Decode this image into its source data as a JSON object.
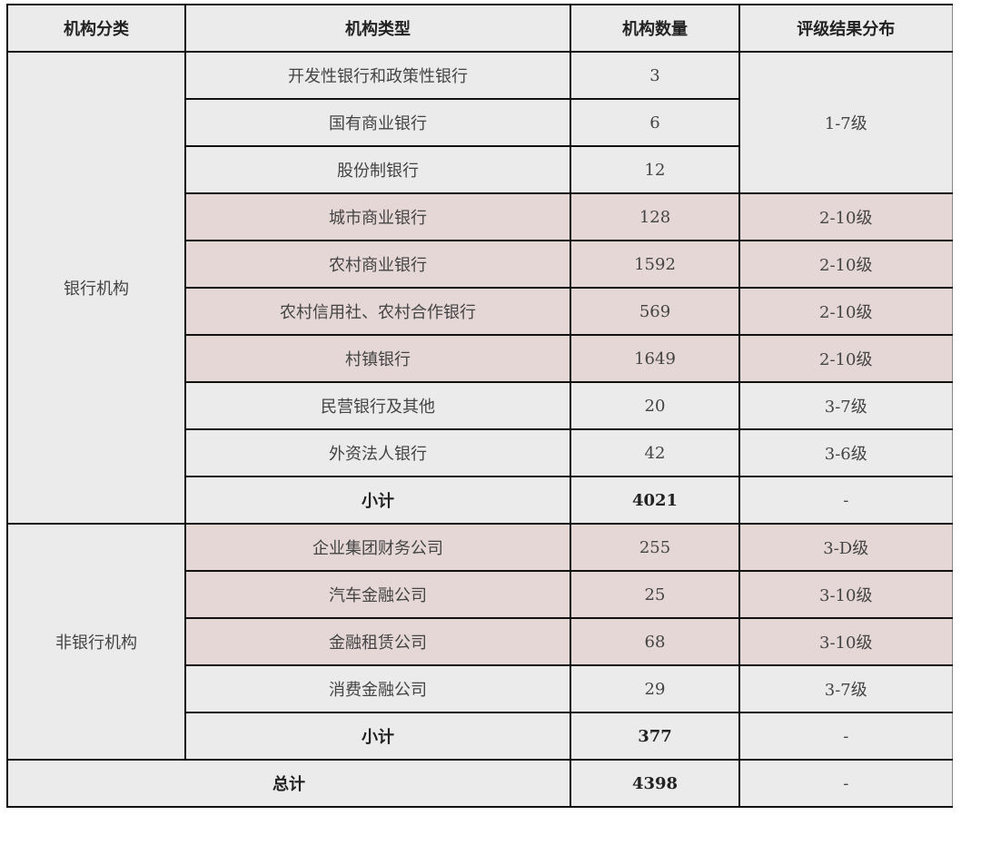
{
  "headers": [
    "机构分类",
    "机构类型",
    "机构数量",
    "评级结果分布"
  ],
  "groups": {
    "bank": "银行机构",
    "nonbank": "非银行机构"
  },
  "rows": [
    {
      "type": "开发性银行和政策性银行",
      "count": "3",
      "rating": "1-7级",
      "highlight": false
    },
    {
      "type": "国有商业银行",
      "count": "6",
      "rating": "1-7级",
      "highlight": false
    },
    {
      "type": "股份制银行",
      "count": "12",
      "rating": "1-7级",
      "highlight": false
    },
    {
      "type": "城市商业银行",
      "count": "128",
      "rating": "2-10级",
      "highlight": true
    },
    {
      "type": "农村商业银行",
      "count": "1592",
      "rating": "2-10级",
      "highlight": true
    },
    {
      "type": "农村信用社、农村合作银行",
      "count": "569",
      "rating": "2-10级",
      "highlight": true
    },
    {
      "type": "村镇银行",
      "count": "1649",
      "rating": "2-10级",
      "highlight": true
    },
    {
      "type": "民营银行及其他",
      "count": "20",
      "rating": "3-7级",
      "highlight": false
    },
    {
      "type": "外资法人银行",
      "count": "42",
      "rating": "3-6级",
      "highlight": false
    },
    {
      "type": "小计",
      "count": "4021",
      "rating": "-",
      "highlight": false
    },
    {
      "type": "企业集团财务公司",
      "count": "255",
      "rating": "3-D级",
      "highlight": true
    },
    {
      "type": "汽车金融公司",
      "count": "25",
      "rating": "3-10级",
      "highlight": true
    },
    {
      "type": "金融租赁公司",
      "count": "68",
      "rating": "3-10级",
      "highlight": true
    },
    {
      "type": "消费金融公司",
      "count": "29",
      "rating": "3-7级",
      "highlight": false
    },
    {
      "type": "小计",
      "count": "377",
      "rating": "-",
      "highlight": false
    }
  ],
  "total": {
    "label": "总计",
    "count": "4398",
    "rating": "-"
  },
  "colors": {
    "background": "#ebebeb",
    "highlight": "#e6d7d7",
    "border": "#111111"
  }
}
